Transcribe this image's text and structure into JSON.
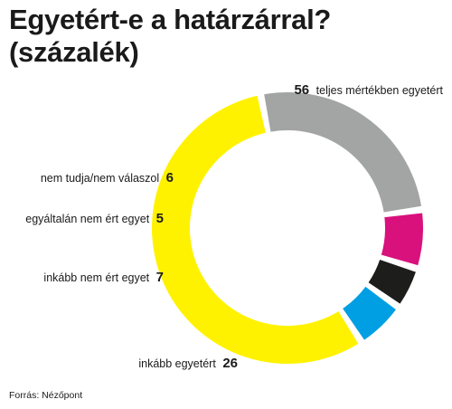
{
  "title": {
    "line1": "Egyetért-e a határzárral?",
    "line2": "(százalék)"
  },
  "source": "Forrás: Nézőpont",
  "chart_data": {
    "type": "pie",
    "donut": true,
    "title": "Egyetért-e a határzárral? (százalék)",
    "slices": [
      {
        "label": "teljes mértékben egyetért",
        "value": 56,
        "color": "#fff200"
      },
      {
        "label": "inkább egyetért",
        "value": 26,
        "color": "#a3a4a4"
      },
      {
        "label": "inkább nem ért egyet",
        "value": 7,
        "color": "#d8117d"
      },
      {
        "label": "egyáltalán nem ért egyet",
        "value": 5,
        "color": "#1d1d1b"
      },
      {
        "label": "nem tudja/nem válaszol",
        "value": 6,
        "color": "#009fe3"
      }
    ],
    "legend": "none"
  }
}
